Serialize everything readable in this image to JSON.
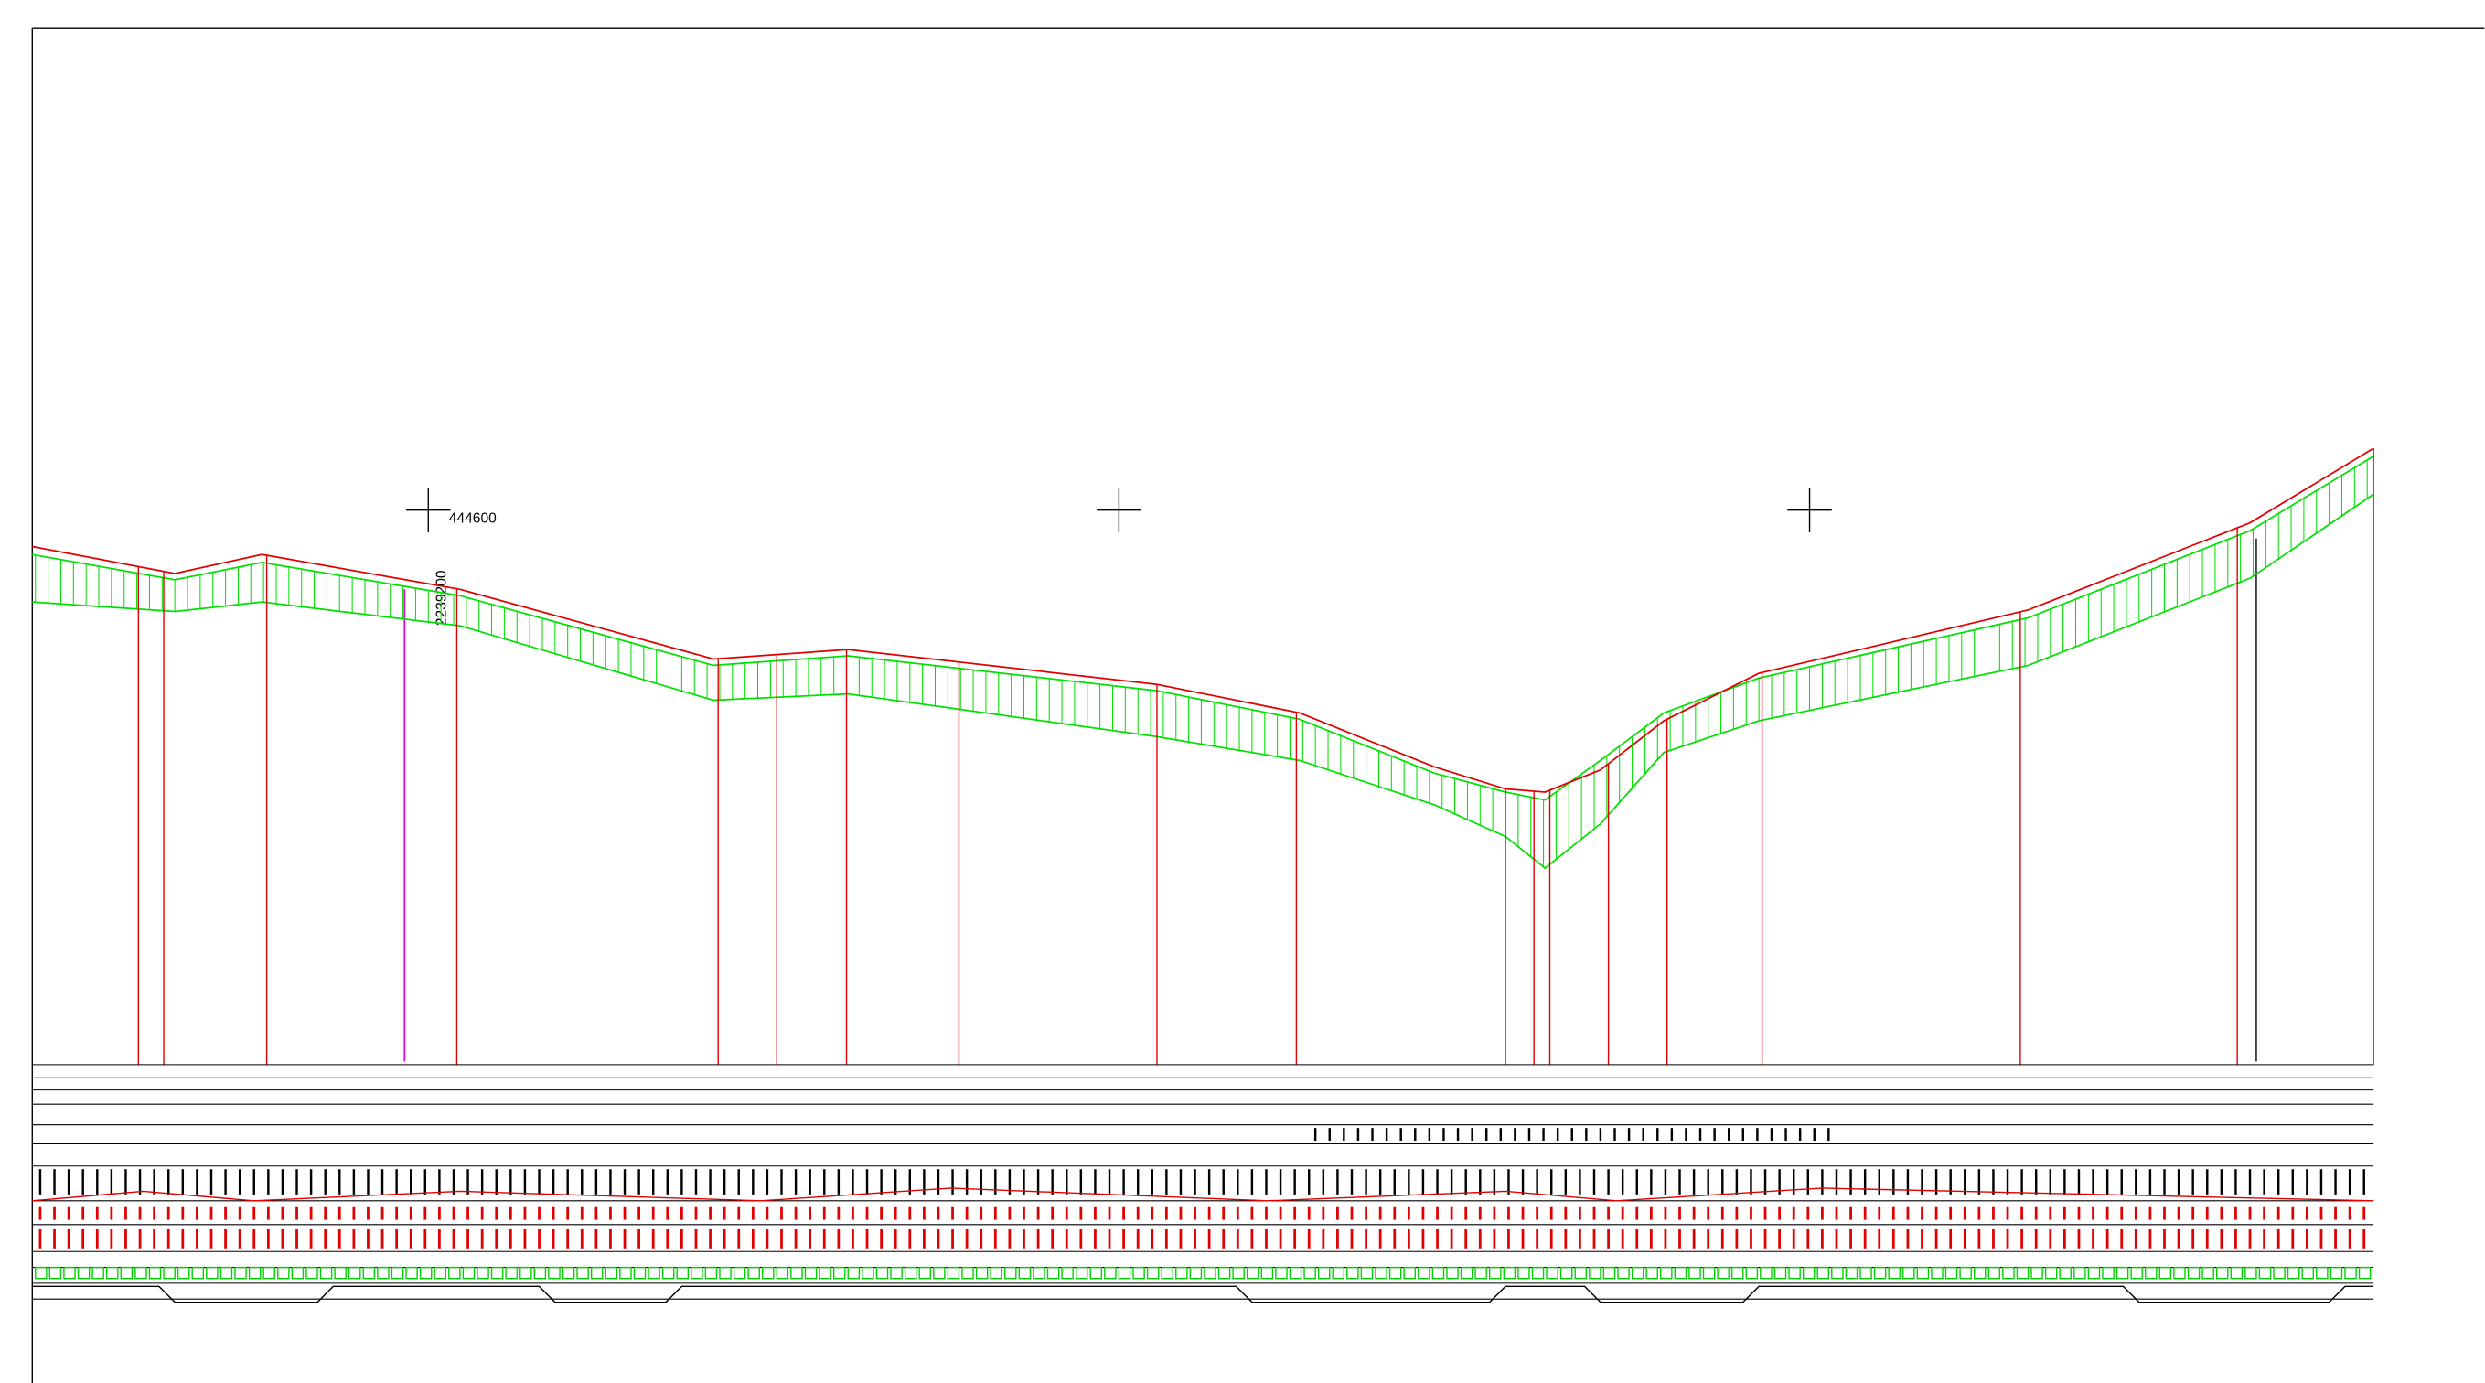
{
  "labels": {
    "easting": "444600",
    "northing": "2239200"
  }
}
